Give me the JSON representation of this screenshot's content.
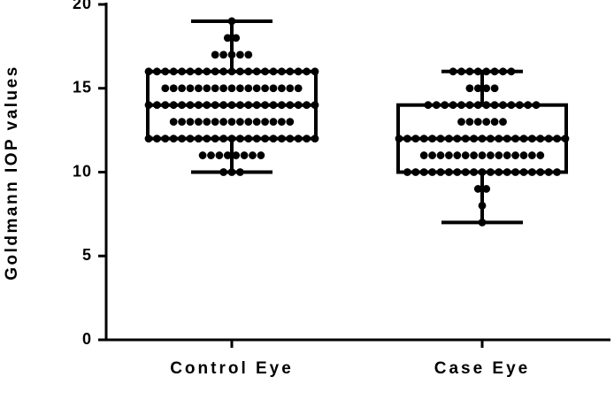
{
  "chart_data": {
    "type": "box",
    "y_label": "Goldmann IOP values",
    "categories": [
      "Control Eye",
      "Case Eye"
    ],
    "ylim": [
      0,
      20
    ],
    "yticks": [
      0,
      5,
      10,
      15,
      20
    ],
    "color": "#000000",
    "boxes": [
      {
        "min": 10,
        "q1": 12,
        "median": 14,
        "q3": 16,
        "max": 19
      },
      {
        "min": 7,
        "q1": 10,
        "median": 12,
        "q3": 14,
        "max": 16
      }
    ],
    "points": [
      [
        19,
        18,
        18,
        17,
        17,
        17,
        17,
        17,
        16,
        16,
        16,
        16,
        16,
        16,
        16,
        16,
        16,
        16,
        16,
        16,
        16,
        16,
        16,
        16,
        16,
        16,
        16,
        16,
        16,
        15,
        15,
        15,
        15,
        15,
        15,
        15,
        15,
        15,
        15,
        15,
        15,
        15,
        15,
        15,
        15,
        15,
        14,
        14,
        14,
        14,
        14,
        14,
        14,
        14,
        14,
        14,
        14,
        14,
        14,
        14,
        14,
        14,
        14,
        14,
        14,
        14,
        14,
        13,
        13,
        13,
        13,
        13,
        13,
        13,
        13,
        13,
        13,
        13,
        13,
        13,
        13,
        13,
        12,
        12,
        12,
        12,
        12,
        12,
        12,
        12,
        12,
        12,
        12,
        12,
        12,
        12,
        12,
        12,
        12,
        12,
        12,
        12,
        12,
        11,
        11,
        11,
        11,
        11,
        11,
        11,
        11,
        10,
        10,
        10
      ],
      [
        16,
        16,
        16,
        16,
        16,
        16,
        16,
        16,
        15,
        15,
        15,
        15,
        14,
        14,
        14,
        14,
        14,
        14,
        14,
        14,
        14,
        14,
        14,
        14,
        14,
        14,
        13,
        13,
        13,
        13,
        13,
        13,
        12,
        12,
        12,
        12,
        12,
        12,
        12,
        12,
        12,
        12,
        12,
        12,
        12,
        12,
        12,
        12,
        12,
        12,
        12,
        12,
        12,
        11,
        11,
        11,
        11,
        11,
        11,
        11,
        11,
        11,
        11,
        11,
        11,
        11,
        11,
        11,
        10,
        10,
        10,
        10,
        10,
        10,
        10,
        10,
        10,
        10,
        10,
        10,
        10,
        10,
        10,
        10,
        10,
        10,
        10,
        9,
        9,
        8,
        7
      ]
    ]
  }
}
